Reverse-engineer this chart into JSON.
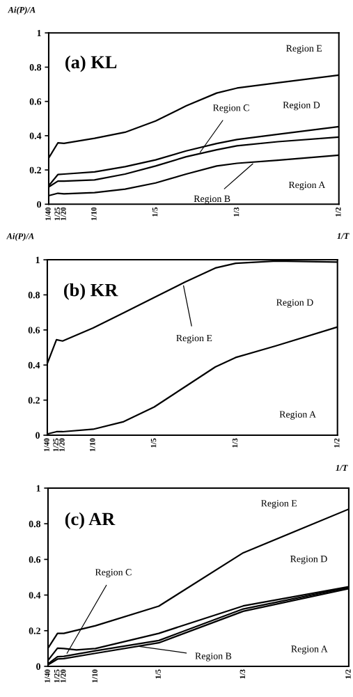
{
  "chart_data": [
    {
      "type": "line",
      "title": "(a) KL",
      "xlabel": "1/T",
      "ylabel": "Ai(P)/A",
      "line_style": "solid",
      "x": [
        0.025,
        0.04,
        0.05,
        0.1,
        0.15,
        0.2,
        0.25,
        0.3,
        0.3333,
        0.4,
        0.5
      ],
      "series": [
        {
          "color": "#000000",
          "values": [
            0.27,
            0.358,
            0.355,
            0.385,
            0.42,
            0.486,
            0.574,
            0.649,
            0.678,
            0.709,
            0.754
          ]
        },
        {
          "color": "#000000",
          "values": [
            0.108,
            0.173,
            0.176,
            0.189,
            0.219,
            0.259,
            0.311,
            0.354,
            0.378,
            0.408,
            0.453
          ]
        },
        {
          "color": "#000000",
          "values": [
            0.101,
            0.135,
            0.135,
            0.142,
            0.176,
            0.223,
            0.277,
            0.318,
            0.341,
            0.365,
            0.392
          ]
        },
        {
          "color": "#000000",
          "values": [
            0.05,
            0.064,
            0.061,
            0.068,
            0.088,
            0.124,
            0.176,
            0.223,
            0.239,
            0.257,
            0.286
          ]
        }
      ],
      "xlim": [
        0.025,
        0.5
      ],
      "ylim": [
        0,
        1
      ],
      "xticks": [
        {
          "value": 0.025,
          "label": "1/40"
        },
        {
          "value": 0.04,
          "label": "1/25"
        },
        {
          "value": 0.05,
          "label": "1/20"
        },
        {
          "value": 0.1,
          "label": "1/10"
        },
        {
          "value": 0.2,
          "label": "1/5"
        },
        {
          "value": 0.3333,
          "label": "1/3"
        },
        {
          "value": 0.5,
          "label": "1/2"
        }
      ],
      "yticks": [
        0,
        0.2,
        0.4,
        0.6,
        0.8,
        1
      ],
      "annotations": [
        "Region E",
        "Region D",
        {
          "text": "Region C",
          "x": 0.273,
          "y": 0.304
        },
        {
          "text": "Region B",
          "x": 0.359,
          "y": 0.236
        },
        "Region A"
      ]
    },
    {
      "type": "line",
      "title": "(b) KR",
      "xlabel": "1/T",
      "ylabel": "Ai(P)/A",
      "line_style": "solid",
      "x": [
        0.025,
        0.04,
        0.05,
        0.1,
        0.15,
        0.2,
        0.25,
        0.3,
        0.3333,
        0.4,
        0.5
      ],
      "series": [
        {
          "color": "#000000",
          "values": [
            0.409,
            0.544,
            0.537,
            0.611,
            0.698,
            0.785,
            0.872,
            0.953,
            0.98,
            0.993,
            0.987
          ]
        },
        {
          "color": "#000000",
          "values": [
            0.007,
            0.02,
            0.02,
            0.034,
            0.077,
            0.161,
            0.275,
            0.389,
            0.443,
            0.51,
            0.617
          ]
        }
      ],
      "xlim": [
        0.025,
        0.5
      ],
      "ylim": [
        0,
        1
      ],
      "xticks": [
        {
          "value": 0.025,
          "label": "1/40"
        },
        {
          "value": 0.04,
          "label": "1/25"
        },
        {
          "value": 0.05,
          "label": "1/20"
        },
        {
          "value": 0.1,
          "label": "1/10"
        },
        {
          "value": 0.2,
          "label": "1/5"
        },
        {
          "value": 0.3333,
          "label": "1/3"
        },
        {
          "value": 0.5,
          "label": "1/2"
        }
      ],
      "yticks": [
        0,
        0.2,
        0.4,
        0.6,
        0.8,
        1
      ],
      "annotations": [
        {
          "text": "Region E",
          "x": 0.248,
          "y": 0.852
        },
        "Region D",
        "Region A"
      ]
    },
    {
      "type": "line",
      "title": "(c) AR",
      "line_style": "solid",
      "x": [
        0.025,
        0.04,
        0.05,
        0.1,
        0.2,
        0.3333,
        0.5
      ],
      "series": [
        {
          "color": "#000000",
          "values": [
            0.102,
            0.185,
            0.185,
            0.228,
            0.338,
            0.637,
            0.882
          ]
        },
        {
          "color": "#000000",
          "x": [
            0.025,
            0.04,
            0.05,
            0.07,
            0.1,
            0.2,
            0.3333,
            0.5
          ],
          "values": [
            0.034,
            0.102,
            0.1,
            0.092,
            0.1,
            0.185,
            0.339,
            0.447
          ]
        },
        {
          "color": "#000000",
          "values": [
            0.014,
            0.054,
            0.056,
            0.087,
            0.145,
            0.322,
            0.443
          ]
        },
        {
          "color": "#000000",
          "values": [
            0.008,
            0.041,
            0.043,
            0.073,
            0.132,
            0.309,
            0.436
          ]
        }
      ],
      "xlim": [
        0.025,
        0.5
      ],
      "ylim": [
        0,
        1
      ],
      "xticks": [
        {
          "value": 0.025,
          "label": "1/40"
        },
        {
          "value": 0.04,
          "label": "1/25"
        },
        {
          "value": 0.05,
          "label": "1/20"
        },
        {
          "value": 0.1,
          "label": "1/10"
        },
        {
          "value": 0.2,
          "label": "1/5"
        },
        {
          "value": 0.3333,
          "label": "1/3"
        },
        {
          "value": 0.5,
          "label": "1/2"
        }
      ],
      "yticks": [
        0,
        0.2,
        0.4,
        0.6,
        0.8,
        1
      ],
      "annotations": [
        "Region E",
        "Region D",
        {
          "text": "Region C",
          "x": 0.055,
          "y": 0.073
        },
        {
          "text": "Region B",
          "x": 0.167,
          "y": 0.113
        },
        "Region A"
      ]
    }
  ]
}
